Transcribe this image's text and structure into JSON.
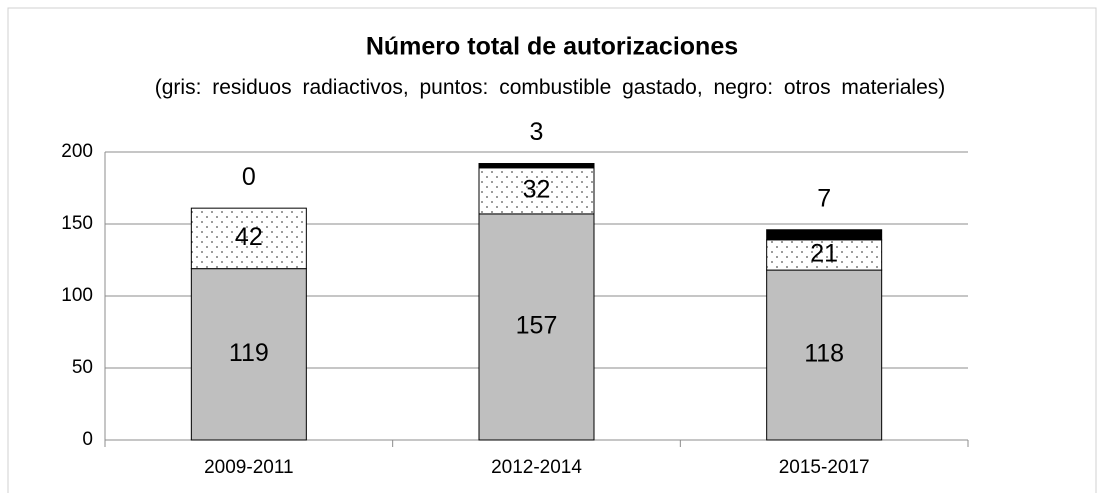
{
  "chart_data": {
    "type": "stacked_bar",
    "title": "Número total de autorizaciones",
    "subtitle": "(gris: residuos radiactivos, puntos: combustible gastado, negro: otros materiales)",
    "categories": [
      "2009-2011",
      "2012-2014",
      "2015-2017"
    ],
    "series": [
      {
        "color": "#bfbfbf",
        "values": [
          119,
          157,
          118
        ]
      },
      {
        "color": "#ffffff",
        "pattern": "dots",
        "values": [
          42,
          32,
          21
        ]
      },
      {
        "color": "#000000",
        "values": [
          0,
          3,
          7
        ]
      }
    ],
    "ylim": [
      0,
      200
    ],
    "yticks": [
      0,
      50,
      100,
      150,
      200
    ],
    "grid": true
  }
}
